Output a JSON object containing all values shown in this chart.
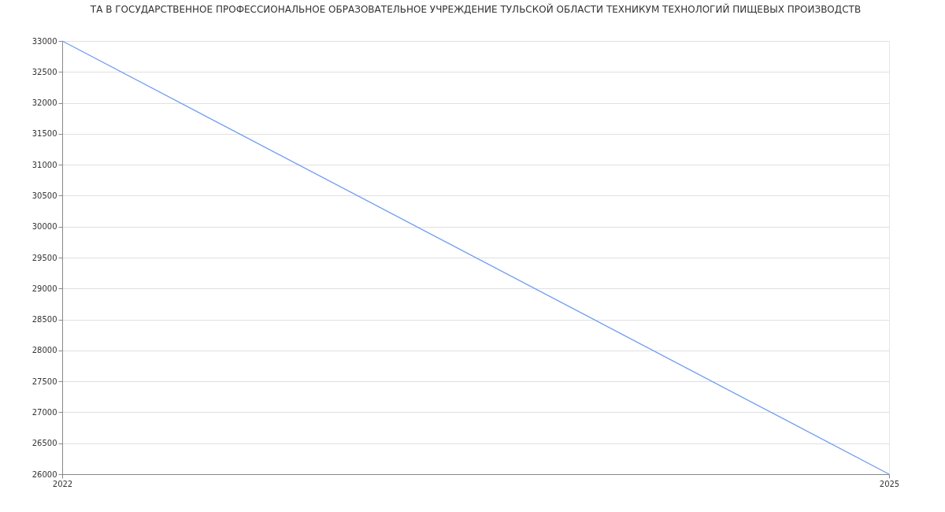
{
  "chart_data": {
    "type": "line",
    "title": "ТА В ГОСУДАРСТВЕННОЕ ПРОФЕССИОНАЛЬНОЕ ОБРАЗОВАТЕЛЬНОЕ УЧРЕЖДЕНИЕ ТУЛЬСКОЙ ОБЛАСТИ ТЕХНИКУМ ТЕХНОЛОГИЙ ПИЩЕВЫХ ПРОИЗВОДСТВ",
    "x": [
      2022,
      2025
    ],
    "series": [
      {
        "color": "#6f9cf2",
        "values": [
          33000,
          26000
        ]
      }
    ],
    "xlim": [
      2022,
      2025
    ],
    "xticks": [
      2022,
      2025
    ],
    "ylim": [
      26000,
      33000
    ],
    "yticks": [
      26000,
      26500,
      27000,
      27500,
      28000,
      28500,
      29000,
      29500,
      30000,
      30500,
      31000,
      31500,
      32000,
      32500,
      33000
    ],
    "grid": "y",
    "legend": false,
    "marker": "none",
    "line_style": "solid"
  }
}
